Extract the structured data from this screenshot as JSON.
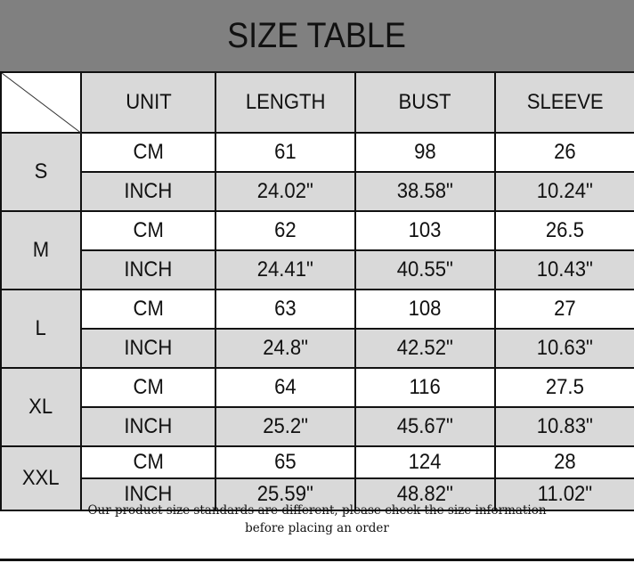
{
  "title": "SIZE TABLE",
  "headers": [
    "UNIT",
    "LENGTH",
    "BUST",
    "SLEEVE"
  ],
  "rows": [
    {
      "size": "S",
      "cm": {
        "unit": "CM",
        "length": "61",
        "bust": "98",
        "sleeve": "26"
      },
      "inch": {
        "unit": "INCH",
        "length": "24.02\"",
        "bust": "38.58\"",
        "sleeve": "10.24\""
      }
    },
    {
      "size": "M",
      "cm": {
        "unit": "CM",
        "length": "62",
        "bust": "103",
        "sleeve": "26.5"
      },
      "inch": {
        "unit": "INCH",
        "length": "24.41\"",
        "bust": "40.55\"",
        "sleeve": "10.43\""
      }
    },
    {
      "size": "L",
      "cm": {
        "unit": "CM",
        "length": "63",
        "bust": "108",
        "sleeve": "27"
      },
      "inch": {
        "unit": "INCH",
        "length": "24.8\"",
        "bust": "42.52\"",
        "sleeve": "10.63\""
      }
    },
    {
      "size": "XL",
      "cm": {
        "unit": "CM",
        "length": "64",
        "bust": "116",
        "sleeve": "27.5"
      },
      "inch": {
        "unit": "INCH",
        "length": "25.2\"",
        "bust": "45.67\"",
        "sleeve": "10.83\""
      }
    },
    {
      "size": "XXL",
      "cm": {
        "unit": "CM",
        "length": "65",
        "bust": "124",
        "sleeve": "28"
      },
      "inch": {
        "unit": "INCH",
        "length": "25.59\"",
        "bust": "48.82\"",
        "sleeve": "11.02\""
      }
    }
  ],
  "note_line1": "Our product size standards are different, please check the size information",
  "note_line2": "before placing an order",
  "colors": {
    "title_bg": "#808080",
    "cell_gray": "#d9d9d9",
    "cell_white": "#ffffff"
  }
}
